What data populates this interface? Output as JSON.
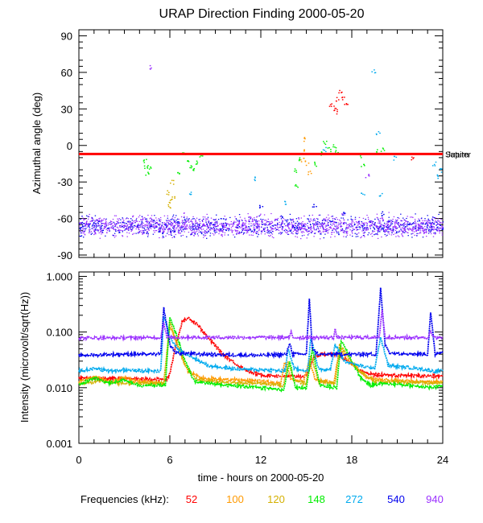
{
  "title": "URAP Direction Finding  2000-05-20",
  "chart_data": [
    {
      "type": "scatter",
      "ylabel": "Azimuthal angle (deg)",
      "ylim": [
        -92,
        95
      ],
      "yticks": [
        90,
        60,
        30,
        0,
        -30,
        -60,
        -90
      ],
      "xlim": [
        0,
        24
      ],
      "reference_line": {
        "y": -7,
        "label": "Saturn",
        "overlap_label": "Jupiter",
        "color": "#ff0000"
      },
      "baseline_band": {
        "y_center": -66,
        "spread": 5,
        "colors": [
          "#9b30ff",
          "#0000ee"
        ]
      },
      "clusters": [
        {
          "name": "52",
          "color": "#ff0000",
          "points": [
            [
              16.6,
              33
            ],
            [
              16.8,
              31
            ],
            [
              17.0,
              38
            ],
            [
              17.2,
              45
            ],
            [
              17.4,
              40
            ],
            [
              17.6,
              36
            ],
            [
              16.9,
              28
            ],
            [
              22.0,
              -10
            ]
          ]
        },
        {
          "name": "100",
          "color": "#ff9900",
          "points": [
            [
              14.8,
              5
            ],
            [
              14.9,
              -5
            ],
            [
              15.0,
              -14
            ],
            [
              15.2,
              -22
            ],
            [
              14.7,
              -12
            ]
          ]
        },
        {
          "name": "120",
          "color": "#d4b000",
          "points": [
            [
              5.8,
              -38
            ],
            [
              6.0,
              -45
            ],
            [
              6.1,
              -30
            ],
            [
              5.9,
              -50
            ],
            [
              6.2,
              -42
            ]
          ]
        },
        {
          "name": "148",
          "color": "#00ee00",
          "points": [
            [
              4.3,
              -12
            ],
            [
              4.4,
              -18
            ],
            [
              4.5,
              -22
            ],
            [
              4.6,
              -17
            ],
            [
              6.9,
              -6
            ],
            [
              7.1,
              -12
            ],
            [
              7.3,
              -16
            ],
            [
              7.5,
              -20
            ],
            [
              7.7,
              -13
            ],
            [
              8.0,
              -8
            ],
            [
              6.6,
              -22
            ],
            [
              14.2,
              -20
            ],
            [
              14.3,
              -32
            ],
            [
              14.6,
              -10
            ],
            [
              15.6,
              -15
            ],
            [
              16.0,
              -6
            ],
            [
              16.2,
              2
            ],
            [
              16.5,
              -3
            ],
            [
              16.8,
              -1
            ],
            [
              17.0,
              -5
            ],
            [
              18.5,
              -8
            ],
            [
              18.7,
              -15
            ],
            [
              19.7,
              -5
            ],
            [
              20.0,
              -3
            ]
          ]
        },
        {
          "name": "272",
          "color": "#00aaee",
          "points": [
            [
              7.3,
              -40
            ],
            [
              11.5,
              -27
            ],
            [
              13.6,
              -46
            ],
            [
              16.2,
              -3
            ],
            [
              18.7,
              -40
            ],
            [
              19.4,
              62
            ],
            [
              19.7,
              10
            ],
            [
              19.9,
              -40
            ],
            [
              20.8,
              -10
            ],
            [
              23.4,
              -15
            ],
            [
              23.6,
              -25
            ],
            [
              23.8,
              -20
            ]
          ]
        },
        {
          "name": "540",
          "color": "#0000ee",
          "points": [
            [
              12.0,
              -50
            ],
            [
              15.5,
              -49
            ],
            [
              17.5,
              -56
            ],
            [
              20.0,
              -56
            ]
          ]
        },
        {
          "name": "940",
          "color": "#9b30ff",
          "points": [
            [
              4.7,
              65
            ],
            [
              19.0,
              -25
            ]
          ]
        }
      ]
    },
    {
      "type": "line",
      "ylabel": "Intensity (microvolt/sqrt(Hz))",
      "xlabel": "time - hours on 2000-05-20",
      "yscale": "log",
      "ylim": [
        0.001,
        1.2
      ],
      "yticks": [
        "1.000",
        "0.100",
        "0.010",
        "0.001"
      ],
      "xlim": [
        0,
        24
      ],
      "xticks": [
        0,
        6,
        12,
        18,
        24
      ],
      "legend_title": "Frequencies (kHz):",
      "legend_position": "bottom",
      "series": [
        {
          "name": "52",
          "color": "#ff0000",
          "points": [
            [
              0,
              0.015
            ],
            [
              5.8,
              0.014
            ],
            [
              6.0,
              0.018
            ],
            [
              6.4,
              0.06
            ],
            [
              6.8,
              0.15
            ],
            [
              7.2,
              0.18
            ],
            [
              7.8,
              0.14
            ],
            [
              8.5,
              0.08
            ],
            [
              9.5,
              0.04
            ],
            [
              10.5,
              0.025
            ],
            [
              11.3,
              0.019
            ],
            [
              12.0,
              0.017
            ],
            [
              13.5,
              0.016
            ],
            [
              15.0,
              0.016
            ],
            [
              15.5,
              0.035
            ],
            [
              16.0,
              0.04
            ],
            [
              17.0,
              0.04
            ],
            [
              17.8,
              0.03
            ],
            [
              18.5,
              0.02
            ],
            [
              19.5,
              0.017
            ],
            [
              24,
              0.016
            ]
          ]
        },
        {
          "name": "100",
          "color": "#ff9900",
          "points": [
            [
              0,
              0.013
            ],
            [
              1.0,
              0.016
            ],
            [
              2.0,
              0.013
            ],
            [
              3.0,
              0.015
            ],
            [
              4.0,
              0.013
            ],
            [
              5.6,
              0.012
            ],
            [
              6.0,
              0.13
            ],
            [
              6.6,
              0.05
            ],
            [
              7.2,
              0.02
            ],
            [
              8.0,
              0.015
            ],
            [
              10.0,
              0.014
            ],
            [
              12.0,
              0.013
            ],
            [
              13.3,
              0.012
            ],
            [
              13.6,
              0.03
            ],
            [
              14.0,
              0.014
            ],
            [
              14.8,
              0.013
            ],
            [
              15.2,
              0.03
            ],
            [
              15.6,
              0.014
            ],
            [
              16.8,
              0.012
            ],
            [
              17.2,
              0.05
            ],
            [
              17.8,
              0.03
            ],
            [
              18.5,
              0.02
            ],
            [
              19.0,
              0.015
            ],
            [
              20.0,
              0.014
            ],
            [
              22.0,
              0.013
            ],
            [
              24,
              0.013
            ]
          ]
        },
        {
          "name": "120",
          "color": "#d4b000",
          "points": [
            [
              0,
              0.012
            ],
            [
              1.5,
              0.013
            ],
            [
              3.0,
              0.012
            ],
            [
              5.6,
              0.012
            ],
            [
              6.0,
              0.15
            ],
            [
              6.5,
              0.06
            ],
            [
              7.0,
              0.025
            ],
            [
              7.8,
              0.014
            ],
            [
              10.0,
              0.012
            ],
            [
              12.0,
              0.012
            ],
            [
              13.5,
              0.011
            ],
            [
              13.8,
              0.03
            ],
            [
              14.2,
              0.013
            ],
            [
              15.0,
              0.012
            ],
            [
              15.3,
              0.04
            ],
            [
              15.8,
              0.013
            ],
            [
              16.9,
              0.012
            ],
            [
              17.2,
              0.06
            ],
            [
              17.8,
              0.035
            ],
            [
              18.5,
              0.02
            ],
            [
              19.5,
              0.013
            ],
            [
              24,
              0.012
            ]
          ]
        },
        {
          "name": "148",
          "color": "#00ee00",
          "points": [
            [
              0,
              0.011
            ],
            [
              1.0,
              0.015
            ],
            [
              2.0,
              0.012
            ],
            [
              3.0,
              0.014
            ],
            [
              4.0,
              0.011
            ],
            [
              5.7,
              0.011
            ],
            [
              6.0,
              0.18
            ],
            [
              6.5,
              0.08
            ],
            [
              7.0,
              0.03
            ],
            [
              7.6,
              0.013
            ],
            [
              8.5,
              0.012
            ],
            [
              10.0,
              0.011
            ],
            [
              12.0,
              0.01
            ],
            [
              13.5,
              0.009
            ],
            [
              13.9,
              0.03
            ],
            [
              14.3,
              0.01
            ],
            [
              15.0,
              0.01
            ],
            [
              15.4,
              0.05
            ],
            [
              15.9,
              0.011
            ],
            [
              17.0,
              0.01
            ],
            [
              17.3,
              0.07
            ],
            [
              18.0,
              0.03
            ],
            [
              18.6,
              0.015
            ],
            [
              19.2,
              0.011
            ],
            [
              20.0,
              0.012
            ],
            [
              22.0,
              0.011
            ],
            [
              23.3,
              0.01
            ],
            [
              24,
              0.011
            ]
          ]
        },
        {
          "name": "272",
          "color": "#00aaee",
          "points": [
            [
              0,
              0.02
            ],
            [
              1.0,
              0.022
            ],
            [
              2.0,
              0.02
            ],
            [
              3.0,
              0.021
            ],
            [
              4.0,
              0.02
            ],
            [
              5.4,
              0.02
            ],
            [
              5.6,
              0.2
            ],
            [
              6.0,
              0.08
            ],
            [
              6.5,
              0.05
            ],
            [
              7.5,
              0.035
            ],
            [
              8.5,
              0.025
            ],
            [
              10.0,
              0.022
            ],
            [
              12.0,
              0.021
            ],
            [
              13.6,
              0.02
            ],
            [
              13.8,
              0.05
            ],
            [
              14.2,
              0.022
            ],
            [
              15.1,
              0.02
            ],
            [
              15.3,
              0.08
            ],
            [
              15.8,
              0.022
            ],
            [
              16.6,
              0.021
            ],
            [
              16.9,
              0.06
            ],
            [
              17.5,
              0.03
            ],
            [
              18.5,
              0.025
            ],
            [
              19.5,
              0.022
            ],
            [
              19.9,
              0.08
            ],
            [
              20.4,
              0.025
            ],
            [
              22.5,
              0.022
            ],
            [
              23.3,
              0.02
            ],
            [
              24,
              0.02
            ]
          ]
        },
        {
          "name": "540",
          "color": "#0000ee",
          "points": [
            [
              0,
              0.038
            ],
            [
              3.0,
              0.04
            ],
            [
              5.4,
              0.04
            ],
            [
              5.6,
              0.27
            ],
            [
              6.0,
              0.06
            ],
            [
              6.4,
              0.042
            ],
            [
              8.0,
              0.04
            ],
            [
              12.0,
              0.038
            ],
            [
              13.7,
              0.04
            ],
            [
              13.9,
              0.065
            ],
            [
              14.1,
              0.04
            ],
            [
              15.0,
              0.04
            ],
            [
              15.2,
              0.38
            ],
            [
              15.4,
              0.05
            ],
            [
              15.8,
              0.04
            ],
            [
              19.6,
              0.04
            ],
            [
              19.9,
              0.6
            ],
            [
              20.2,
              0.06
            ],
            [
              20.5,
              0.042
            ],
            [
              23.0,
              0.04
            ],
            [
              23.2,
              0.22
            ],
            [
              23.5,
              0.04
            ],
            [
              24,
              0.045
            ]
          ]
        },
        {
          "name": "940",
          "color": "#9b30ff",
          "points": [
            [
              0,
              0.078
            ],
            [
              5.4,
              0.08
            ],
            [
              5.6,
              0.15
            ],
            [
              5.8,
              0.08
            ],
            [
              13.9,
              0.08
            ],
            [
              14.0,
              0.1
            ],
            [
              14.1,
              0.08
            ],
            [
              16.8,
              0.08
            ],
            [
              16.9,
              0.12
            ],
            [
              17.0,
              0.08
            ],
            [
              19.8,
              0.08
            ],
            [
              20.0,
              0.25
            ],
            [
              20.2,
              0.08
            ],
            [
              23.0,
              0.08
            ],
            [
              23.2,
              0.1
            ],
            [
              23.4,
              0.08
            ],
            [
              24,
              0.08
            ]
          ]
        }
      ]
    }
  ]
}
